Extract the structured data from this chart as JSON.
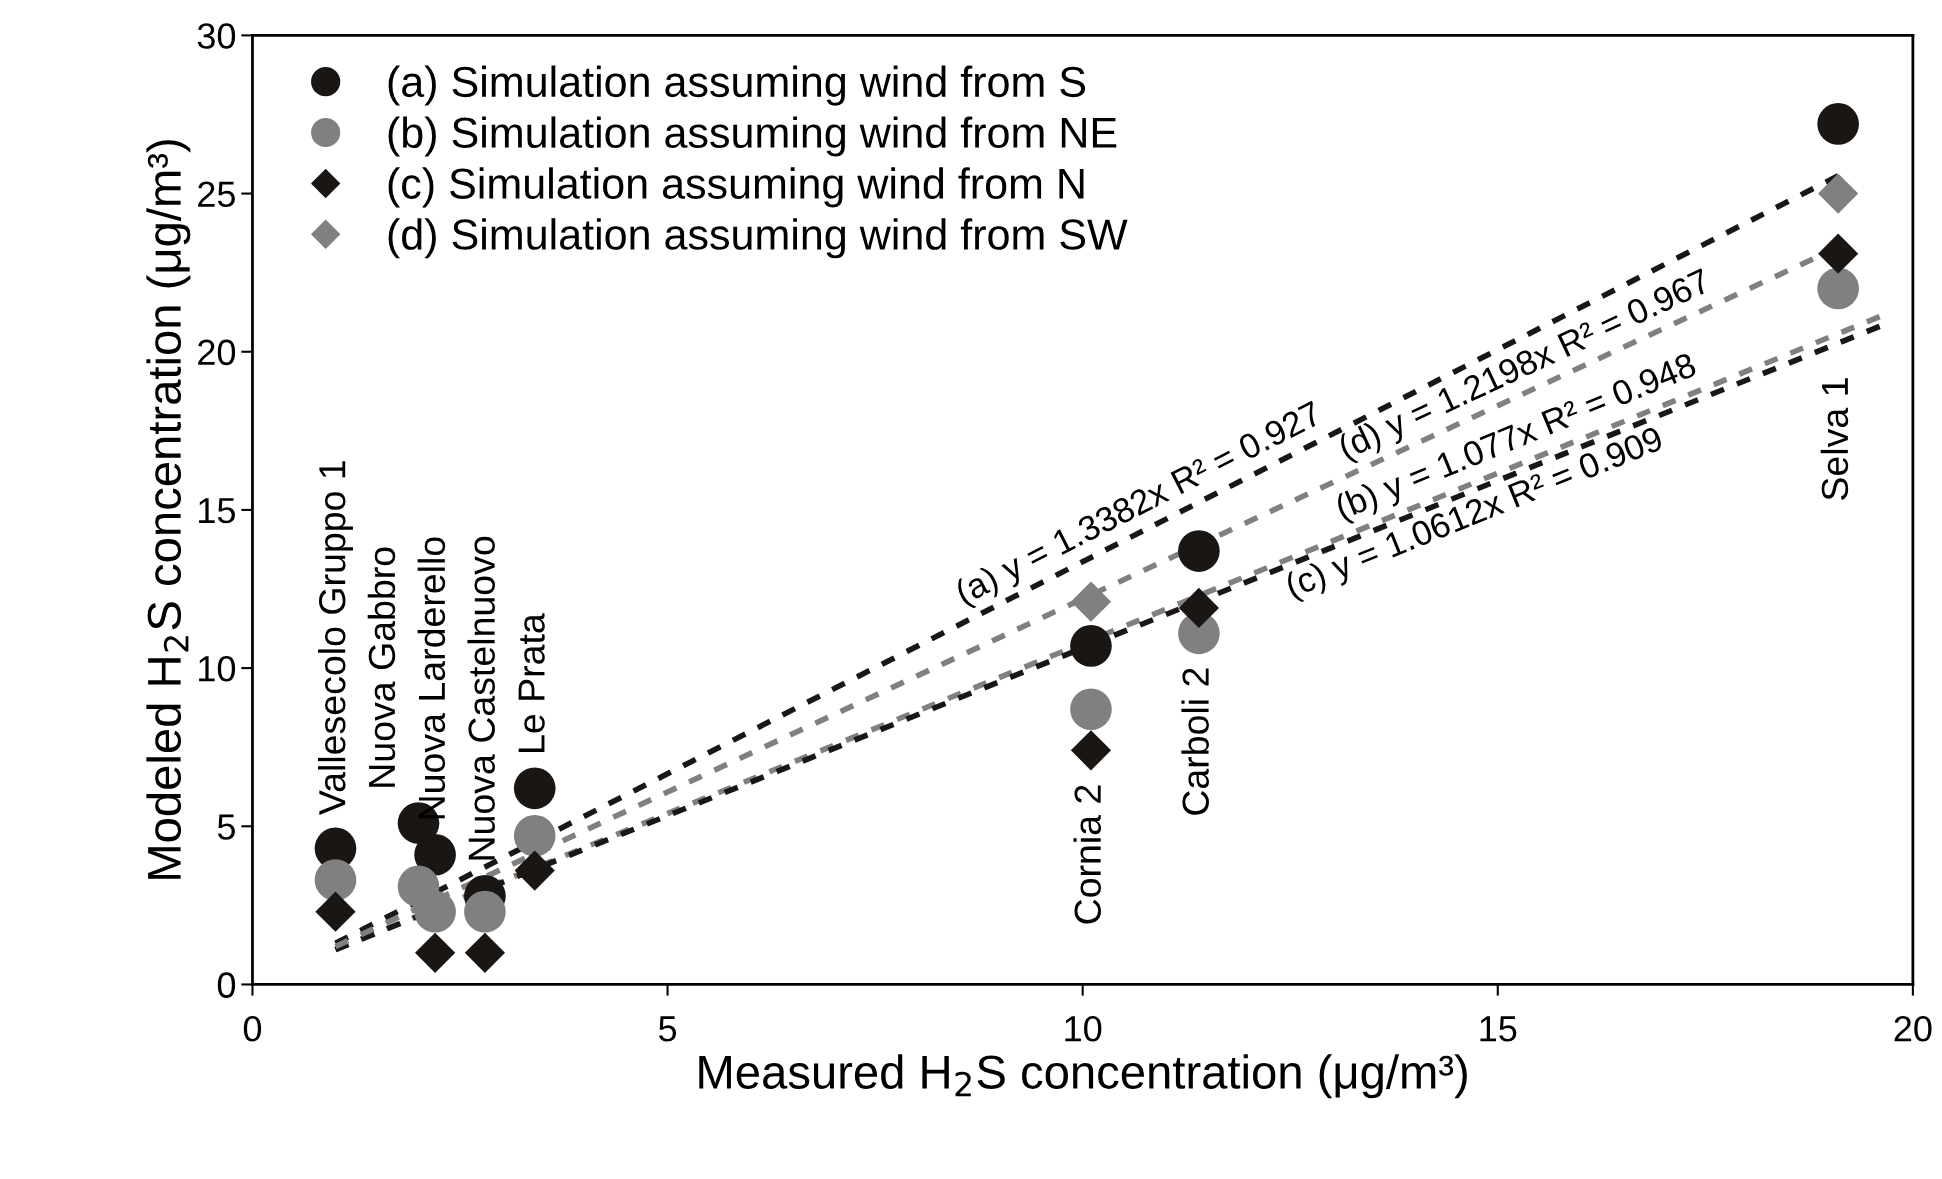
{
  "chart_data": {
    "type": "scatter",
    "xlabel": "Measured H$_{2}$S concentration (μg/m³)",
    "ylabel": "Modeled H$_{2}$S concentration (μg/m³)",
    "x": [
      1.0,
      2.0,
      2.2,
      2.8,
      3.4,
      10.1,
      11.4,
      19.1
    ],
    "series": [
      {
        "name": "(a) Simulation assuming wind from S",
        "color": "#1a1614",
        "marker": "circle",
        "values": [
          4.3,
          5.1,
          4.1,
          2.8,
          6.2,
          10.7,
          13.7,
          27.2
        ]
      },
      {
        "name": "(b) Simulation assuming wind from NE",
        "color": "#808080",
        "marker": "circle",
        "values": [
          3.3,
          3.1,
          2.3,
          2.3,
          4.7,
          8.7,
          11.1,
          22.0
        ]
      },
      {
        "name": "(c) Simulation assuming wind from N",
        "color": "#1a1614",
        "marker": "diamond",
        "values": [
          2.3,
          null,
          1.0,
          1.0,
          3.6,
          7.4,
          11.9,
          23.1
        ]
      },
      {
        "name": "(d) Simulation assuming wind from SW",
        "color": "#808080",
        "marker": "diamond",
        "values": [
          null,
          null,
          null,
          null,
          null,
          12.1,
          null,
          25.0
        ]
      },
      {
        "type": "line",
        "color": "#1a1614",
        "line_style": "dashed",
        "x": [
          1.0,
          19.1
        ],
        "values": [
          1.3,
          25.56
        ]
      },
      {
        "type": "line",
        "color": "#808080",
        "line_style": "dashed",
        "x": [
          1.0,
          19.6
        ],
        "values": [
          1.1,
          21.11
        ]
      },
      {
        "type": "line",
        "color": "#1a1614",
        "line_style": "dashed",
        "x": [
          1.0,
          19.6
        ],
        "values": [
          1.1,
          20.8
        ]
      },
      {
        "type": "line",
        "color": "#808080",
        "line_style": "dashed",
        "x": [
          1.0,
          19.1
        ],
        "values": [
          1.2,
          23.3
        ]
      }
    ],
    "annotations": [
      {
        "text": "Vallesecolo Gruppo 1",
        "x": 1.0,
        "y": 4.3
      },
      {
        "text": "Nuova Gabbro",
        "x": 2.0,
        "y": 5.1
      },
      {
        "text": "Nuova Larderello",
        "x": 2.2,
        "y": 4.1
      },
      {
        "text": "Nuova Castelnuovo",
        "x": 2.8,
        "y": 2.8
      },
      {
        "text": "Le Prata",
        "x": 3.4,
        "y": 6.2
      },
      {
        "text": "Cornia 2",
        "x": 10.1,
        "y": 7.4
      },
      {
        "text": "Carboli 2",
        "x": 11.4,
        "y": 11.1
      },
      {
        "text": "Selva 1",
        "x": 19.1,
        "y": 22.0
      },
      {
        "text": "(a) y = 1.3382x R² = 0.927",
        "x": 8.6,
        "y": 11.51
      },
      {
        "text": "(d) y = 1.2198x R² = 0.967",
        "x": 13.2,
        "y": 16.1
      },
      {
        "text": "(b) y = 1.077x R² = 0.948",
        "x": 13.15,
        "y": 14.2
      },
      {
        "text": "(c) y = 1.0612x R² = 0.909",
        "x": 12.4,
        "y": 13.2
      }
    ],
    "xlim": [
      0,
      20
    ],
    "xticks": [
      0,
      5,
      10,
      15,
      20
    ],
    "ylim": [
      0,
      30
    ],
    "yticks": [
      0,
      5,
      10,
      15,
      20,
      25,
      30
    ],
    "legend": "top left",
    "grid": false
  }
}
